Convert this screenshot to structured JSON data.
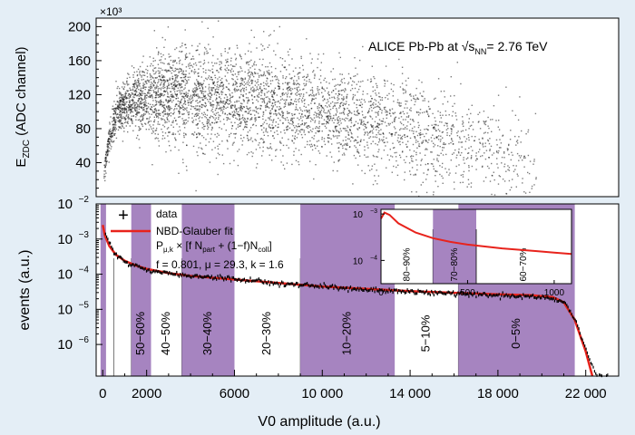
{
  "chart_data": [
    {
      "type": "scatter",
      "panel": "top",
      "title": "ALICE Pb-Pb at √s_NN = 2.76 TeV",
      "title_parts": {
        "main": "ALICE Pb-Pb at √s",
        "sub": "NN",
        "tail": "= 2.76 TeV"
      },
      "ylabel_parts": {
        "main": "E",
        "sub": "ZDC",
        "tail": " (ADC channel)"
      },
      "y_multiplier": "×10³",
      "xlim": [
        -300,
        23500
      ],
      "ylim": [
        0,
        210
      ],
      "yticks": [
        40,
        80,
        120,
        160,
        200
      ],
      "ytick_labels": [
        "40",
        "80",
        "120",
        "160",
        "200"
      ],
      "marker_color": "#111111",
      "ridge_description": [
        {
          "x": 0,
          "y": 15
        },
        {
          "x": 200,
          "y": 60
        },
        {
          "x": 600,
          "y": 100
        },
        {
          "x": 1500,
          "y": 115
        },
        {
          "x": 3000,
          "y": 122
        },
        {
          "x": 6000,
          "y": 116
        },
        {
          "x": 9000,
          "y": 105
        },
        {
          "x": 12000,
          "y": 90
        },
        {
          "x": 15000,
          "y": 72
        },
        {
          "x": 18000,
          "y": 52
        },
        {
          "x": 20000,
          "y": 35
        },
        {
          "x": 22000,
          "y": 15
        }
      ]
    },
    {
      "type": "line",
      "panel": "bottom",
      "xlabel": "V0 amplitude (a.u.)",
      "ylabel": "events (a.u.)",
      "xlim": [
        -300,
        23500
      ],
      "ylog": true,
      "ylim_exponents": [
        -6.9,
        -2
      ],
      "xticks": [
        0,
        2000,
        6000,
        10000,
        14000,
        18000,
        22000
      ],
      "xtick_labels": [
        "0",
        "2000",
        "6000",
        "10 000",
        "14 000",
        "18 000",
        "22 000"
      ],
      "yticks_exponents": [
        -6,
        -5,
        -4,
        -3,
        -2
      ],
      "series": [
        {
          "name": "data",
          "marker": "+",
          "color": "#000000",
          "x": [
            100,
            500,
            1000,
            2000,
            4000,
            6000,
            8000,
            10000,
            12000,
            14000,
            16000,
            18000,
            20000,
            21000,
            21500,
            22000,
            22500
          ],
          "log10_y": [
            -2.85,
            -3.4,
            -3.65,
            -3.9,
            -4.05,
            -4.15,
            -4.25,
            -4.35,
            -4.45,
            -4.5,
            -4.55,
            -4.6,
            -4.65,
            -4.8,
            -5.3,
            -6.2,
            -6.9
          ]
        },
        {
          "name": "NBD-Glauber fit",
          "color": "#e8231c",
          "x": [
            0,
            100,
            300,
            600,
            1000,
            1500,
            2000,
            3000,
            4000,
            6000,
            8000,
            10000,
            12000,
            14000,
            16000,
            18000,
            19500,
            20500,
            21000,
            21500,
            22000,
            22300
          ],
          "log10_y": [
            -2.6,
            -2.9,
            -3.2,
            -3.45,
            -3.62,
            -3.75,
            -3.85,
            -3.97,
            -4.05,
            -4.15,
            -4.25,
            -4.35,
            -4.42,
            -4.48,
            -4.53,
            -4.57,
            -4.6,
            -4.65,
            -4.8,
            -5.3,
            -6.2,
            -6.9
          ]
        }
      ],
      "legend": {
        "data_label": "data",
        "fit_label": "NBD-Glauber fit",
        "formula": {
          "p": "P",
          "p_sub": "μ,k",
          "mid": " × [f N",
          "npart_sub": "part",
          "rest": " + (1−f)N",
          "ncoll_sub": "coll",
          "end": "]"
        },
        "params": "f = 0.801, μ = 29.3, k = 1.6"
      },
      "bands": [
        {
          "label": "",
          "x0": -100,
          "x1": 150,
          "shaded": true
        },
        {
          "label": "",
          "x0": 150,
          "x1": 500,
          "shaded": false
        },
        {
          "label": "",
          "x0": 500,
          "x1": 1300,
          "shaded": false
        },
        {
          "label": "50−60%",
          "x0": 1300,
          "x1": 2200,
          "shaded": true
        },
        {
          "label": "40−50%",
          "x0": 2200,
          "x1": 3600,
          "shaded": false
        },
        {
          "label": "30−40%",
          "x0": 3600,
          "x1": 6000,
          "shaded": true
        },
        {
          "label": "20−30%",
          "x0": 6000,
          "x1": 9000,
          "shaded": false
        },
        {
          "label": "10−20%",
          "x0": 9000,
          "x1": 13300,
          "shaded": true
        },
        {
          "label": "5−10%",
          "x0": 13300,
          "x1": 16200,
          "shaded": false
        },
        {
          "label": "0−5%",
          "x0": 16200,
          "x1": 21500,
          "shaded": true
        }
      ],
      "band_color": "#a684c0",
      "inset": {
        "xlim": [
          0,
          1100
        ],
        "xticks": [
          0,
          500,
          1000
        ],
        "xtick_labels": [
          "0",
          "500",
          "1000"
        ],
        "yticks_exponents": [
          -4,
          -3
        ],
        "ylim_exponents": [
          -4.5,
          -2.9
        ],
        "bands": [
          {
            "label": "80−90%",
            "x0": 0,
            "x1": 300,
            "shaded": false
          },
          {
            "label": "70−80%",
            "x0": 300,
            "x1": 550,
            "shaded": true
          },
          {
            "label": "60−70%",
            "x0": 550,
            "x1": 1100,
            "shaded": false
          }
        ],
        "curve_x": [
          0,
          20,
          50,
          100,
          200,
          300,
          400,
          500,
          600,
          700,
          800,
          900,
          1000,
          1100
        ],
        "curve_log10_y": [
          -3.1,
          -2.97,
          -3.02,
          -3.2,
          -3.4,
          -3.52,
          -3.6,
          -3.66,
          -3.7,
          -3.74,
          -3.77,
          -3.8,
          -3.83,
          -3.86
        ]
      }
    }
  ]
}
